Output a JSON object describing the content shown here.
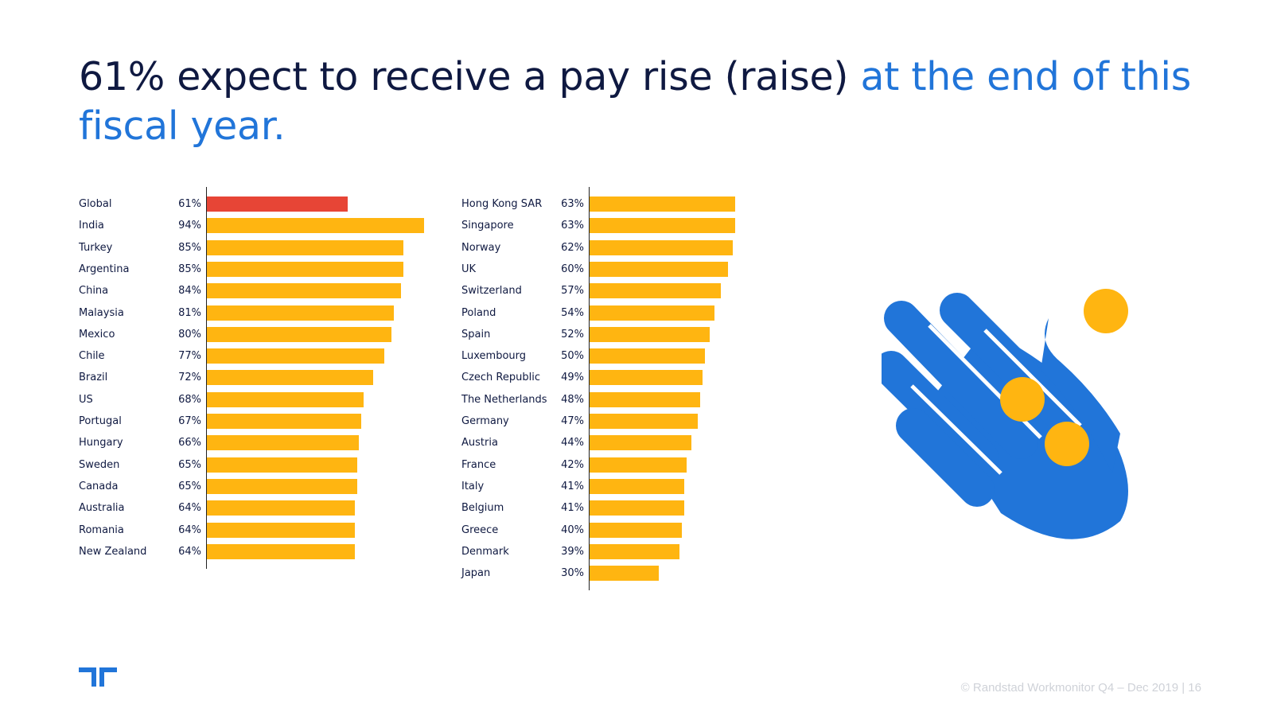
{
  "title": {
    "part1": "61% expect to receive a pay rise (raise) ",
    "part2": "at the end of this fiscal year."
  },
  "colors": {
    "title_dark": "#0f1941",
    "title_blue": "#2175d9",
    "bar_default": "#ffb511",
    "bar_highlight": "#e74536",
    "hand": "#2175d9",
    "coin": "#ffb511"
  },
  "chart_data": [
    {
      "type": "bar",
      "orientation": "horizontal",
      "title": "",
      "xlabel": "",
      "ylabel": "",
      "xlim": [
        0,
        100
      ],
      "categories": [
        "Global",
        "India",
        "Turkey",
        "Argentina",
        "China",
        "Malaysia",
        "Mexico",
        "Chile",
        "Brazil",
        "US",
        "Portugal",
        "Hungary",
        "Sweden",
        "Canada",
        "Australia",
        "Romania",
        "New Zealand"
      ],
      "values": [
        61,
        94,
        85,
        85,
        84,
        81,
        80,
        77,
        72,
        68,
        67,
        66,
        65,
        65,
        64,
        64,
        64
      ],
      "value_labels": [
        "61%",
        "94%",
        "85%",
        "85%",
        "84%",
        "81%",
        "80%",
        "77%",
        "72%",
        "68%",
        "67%",
        "66%",
        "65%",
        "65%",
        "64%",
        "64%",
        "64%"
      ],
      "highlight_index": 0
    },
    {
      "type": "bar",
      "orientation": "horizontal",
      "title": "",
      "xlabel": "",
      "ylabel": "",
      "xlim": [
        0,
        100
      ],
      "categories": [
        "Hong Kong SAR",
        "Singapore",
        "Norway",
        "UK",
        "Switzerland",
        "Poland",
        "Spain",
        "Luxembourg",
        "Czech Republic",
        "The Netherlands",
        "Germany",
        "Austria",
        "France",
        "Italy",
        "Belgium",
        "Greece",
        "Denmark",
        "Japan"
      ],
      "values": [
        63,
        63,
        62,
        60,
        57,
        54,
        52,
        50,
        49,
        48,
        47,
        44,
        42,
        41,
        41,
        40,
        39,
        30
      ],
      "value_labels": [
        "63%",
        "63%",
        "62%",
        "60%",
        "57%",
        "54%",
        "52%",
        "50%",
        "49%",
        "48%",
        "47%",
        "44%",
        "42%",
        "41%",
        "41%",
        "40%",
        "39%",
        "30%"
      ],
      "highlight_index": -1
    }
  ],
  "illustration": {
    "icon": "hand-with-coins-icon"
  },
  "logo": {
    "icon": "randstad-logo-icon"
  },
  "footer": {
    "text": "© Randstad Workmonitor Q4 – Dec 2019  |  16"
  }
}
